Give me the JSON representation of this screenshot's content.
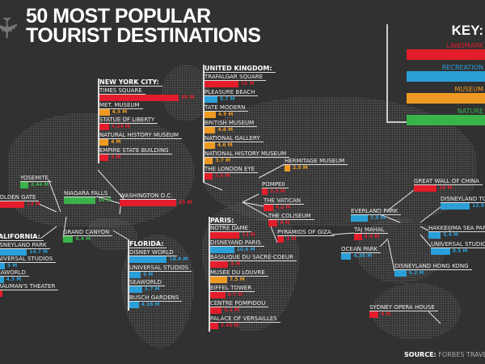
{
  "title": {
    "line1": "50 MOST POPULAR",
    "line2": "TOURIST DESTINATIONS"
  },
  "colors": {
    "landmark": "#e31d2b",
    "recreation": "#2a9fd8",
    "museum": "#ee9a22",
    "nature": "#3ab34a",
    "background": "#313131"
  },
  "key": {
    "title": "KEY:",
    "items": [
      {
        "label": "LANDMARK",
        "cat": "landmark"
      },
      {
        "label": "RECREATION",
        "cat": "recreation"
      },
      {
        "label": "MUSEUM",
        "cat": "museum"
      },
      {
        "label": "NATURE",
        "cat": "nature"
      }
    ]
  },
  "source": {
    "label": "SOURCE:",
    "text": "FORBES TRAVEL"
  },
  "groups": {
    "nyc": {
      "header": "NEW YORK CITY:",
      "items": [
        {
          "name": "TIMES SQUARE",
          "value": 35,
          "value_label": "35 M",
          "cat": "landmark"
        },
        {
          "name": "MET. MUSEUM",
          "value": 4.5,
          "value_label": "4.5 M",
          "cat": "museum"
        },
        {
          "name": "STATUE OF LIBERTY",
          "value": 4.24,
          "value_label": "4.24 M",
          "cat": "landmark"
        },
        {
          "name": "NATURAL HISTORY MUSEUM",
          "value": 4,
          "value_label": "4 M",
          "cat": "museum"
        },
        {
          "name": "EMPIRE STATE BUILDING",
          "value": 4,
          "value_label": "4 M",
          "cat": "landmark"
        }
      ]
    },
    "uk": {
      "header": "UNITED KINGDOM:",
      "items": [
        {
          "name": "TRAFALGAR SQUARE",
          "value": 15,
          "value_label": "15 M",
          "cat": "landmark"
        },
        {
          "name": "PLEASURE BEACH",
          "value": 5.7,
          "value_label": "5.7 M",
          "cat": "recreation"
        },
        {
          "name": "TATE MODERN",
          "value": 4.9,
          "value_label": "4.9 M",
          "cat": "museum"
        },
        {
          "name": "BRITISH MUSEUM",
          "value": 4.8,
          "value_label": "4.8 M",
          "cat": "museum"
        },
        {
          "name": "NATIONAL GALLERY",
          "value": 4.6,
          "value_label": "4.6 M",
          "cat": "museum"
        },
        {
          "name": "NATIONAL HISTORY MUSEUM",
          "value": 3.7,
          "value_label": "3.7 M",
          "cat": "museum"
        },
        {
          "name": "THE LONDON EYE",
          "value": 3.5,
          "value_label": "3.5 M",
          "cat": "landmark"
        }
      ]
    },
    "california": {
      "header": "CALIFORNIA:",
      "items": [
        {
          "name": "DISNEYLAND PARK",
          "value": 14.7,
          "value_label": "14.7 M",
          "cat": "recreation"
        },
        {
          "name": "UNIVERSAL STUDIOS",
          "value": 5,
          "value_label": "5 M",
          "cat": "recreation"
        },
        {
          "name": "SEAWORLD",
          "value": 4.5,
          "value_label": "4.5 M",
          "cat": "recreation"
        },
        {
          "name": "GRAUMAN'S THEATER",
          "value": 4,
          "value_label": "",
          "cat": "landmark"
        }
      ]
    },
    "florida": {
      "header": "FLORIDA:",
      "items": [
        {
          "name": "DISNEY WORLD",
          "value": 16.6,
          "value_label": "16.6 M",
          "cat": "recreation"
        },
        {
          "name": "UNIVERSAL STUDIOS",
          "value": 5,
          "value_label": "5 M",
          "cat": "recreation"
        },
        {
          "name": "SEAWORLD",
          "value": 5.7,
          "value_label": "5.7 M",
          "cat": "recreation"
        },
        {
          "name": "BUSCH GARDENS",
          "value": 4.16,
          "value_label": "4.16 M",
          "cat": "recreation"
        }
      ]
    },
    "paris": {
      "header": "PARIS:",
      "items": [
        {
          "name": "NOTRE DAME",
          "value": 13,
          "value_label": "13 M",
          "cat": "landmark"
        },
        {
          "name": "DISNEYAND PARIS",
          "value": 10.6,
          "value_label": "10.6 M",
          "cat": "recreation"
        },
        {
          "name": "BASILIQUE DU SACRÉ-COEUR",
          "value": 8,
          "value_label": "8 M",
          "cat": "landmark"
        },
        {
          "name": "MUSÉE DU LOUVRE",
          "value": 7.5,
          "value_label": "7.5 M",
          "cat": "museum"
        },
        {
          "name": "EIFFEL TOWER",
          "value": 6.7,
          "value_label": "6.7 M",
          "cat": "landmark"
        },
        {
          "name": "CENTRE POMPIDOU",
          "value": 5.1,
          "value_label": "5.1 M",
          "cat": "landmark"
        },
        {
          "name": "PALACE OF VERSAILLES",
          "value": 3.45,
          "value_label": "3.45 M",
          "cat": "landmark"
        }
      ]
    }
  },
  "singles": [
    {
      "name": "YOSEMITE",
      "value": 3.44,
      "value_label": "3.44 M",
      "cat": "nature"
    },
    {
      "name": "GOLDEN GATE",
      "value": 13,
      "value_label": "13 M",
      "cat": "landmark"
    },
    {
      "name": "NIAGARA FALLS",
      "value": 14,
      "value_label": "14 M",
      "cat": "nature"
    },
    {
      "name": "GRAND CANYON",
      "value": 4.4,
      "value_label": "4.4 M",
      "cat": "nature"
    },
    {
      "name": "WASHINGTON D.C.",
      "value": 25,
      "value_label": "25 M",
      "cat": "landmark"
    },
    {
      "name": "HERMITAGE MUSEUM",
      "value": 2.5,
      "value_label": "2.5 M",
      "cat": "museum"
    },
    {
      "name": "POMPEII",
      "value": 2.5,
      "value_label": "2.5 M",
      "cat": "landmark"
    },
    {
      "name": "THE VATICAN",
      "value": 4.2,
      "value_label": "4.2 M",
      "cat": "landmark"
    },
    {
      "name": "THE COLISEUM",
      "value": 4,
      "value_label": "4 M",
      "cat": "landmark"
    },
    {
      "name": "PYRAMIDS OF GIZA",
      "value": 3,
      "value_label": "3 M",
      "cat": "landmark"
    },
    {
      "name": "GREAT WALL OF CHINA",
      "value": 10,
      "value_label": "10 M",
      "cat": "landmark"
    },
    {
      "name": "DISNEYLAND TOKYO",
      "value": 12.9,
      "value_label": "12.9 M",
      "cat": "recreation"
    },
    {
      "name": "EVERLAND PARK",
      "value": 7.5,
      "value_label": "7.5 M",
      "cat": "recreation"
    },
    {
      "name": "HAKKEIJIMA SEA PARADISE",
      "value": 5.4,
      "value_label": "5.4 M",
      "cat": "recreation"
    },
    {
      "name": "TAJ MAHAL",
      "value": 3.4,
      "value_label": "3.4 M",
      "cat": "landmark"
    },
    {
      "name": "UNIVERSAL STUDIOS JAPAN",
      "value": 8.5,
      "value_label": "8.5 M",
      "cat": "recreation"
    },
    {
      "name": "OCEAN PARK",
      "value": 4.38,
      "value_label": "4.38 M",
      "cat": "recreation"
    },
    {
      "name": "DISNEYLAND HONG KONG",
      "value": 5.2,
      "value_label": "5.2 M",
      "cat": "recreation"
    },
    {
      "name": "SYDNEY OPERA HOUSE",
      "value": 4,
      "value_label": "4 M",
      "cat": "landmark"
    }
  ]
}
